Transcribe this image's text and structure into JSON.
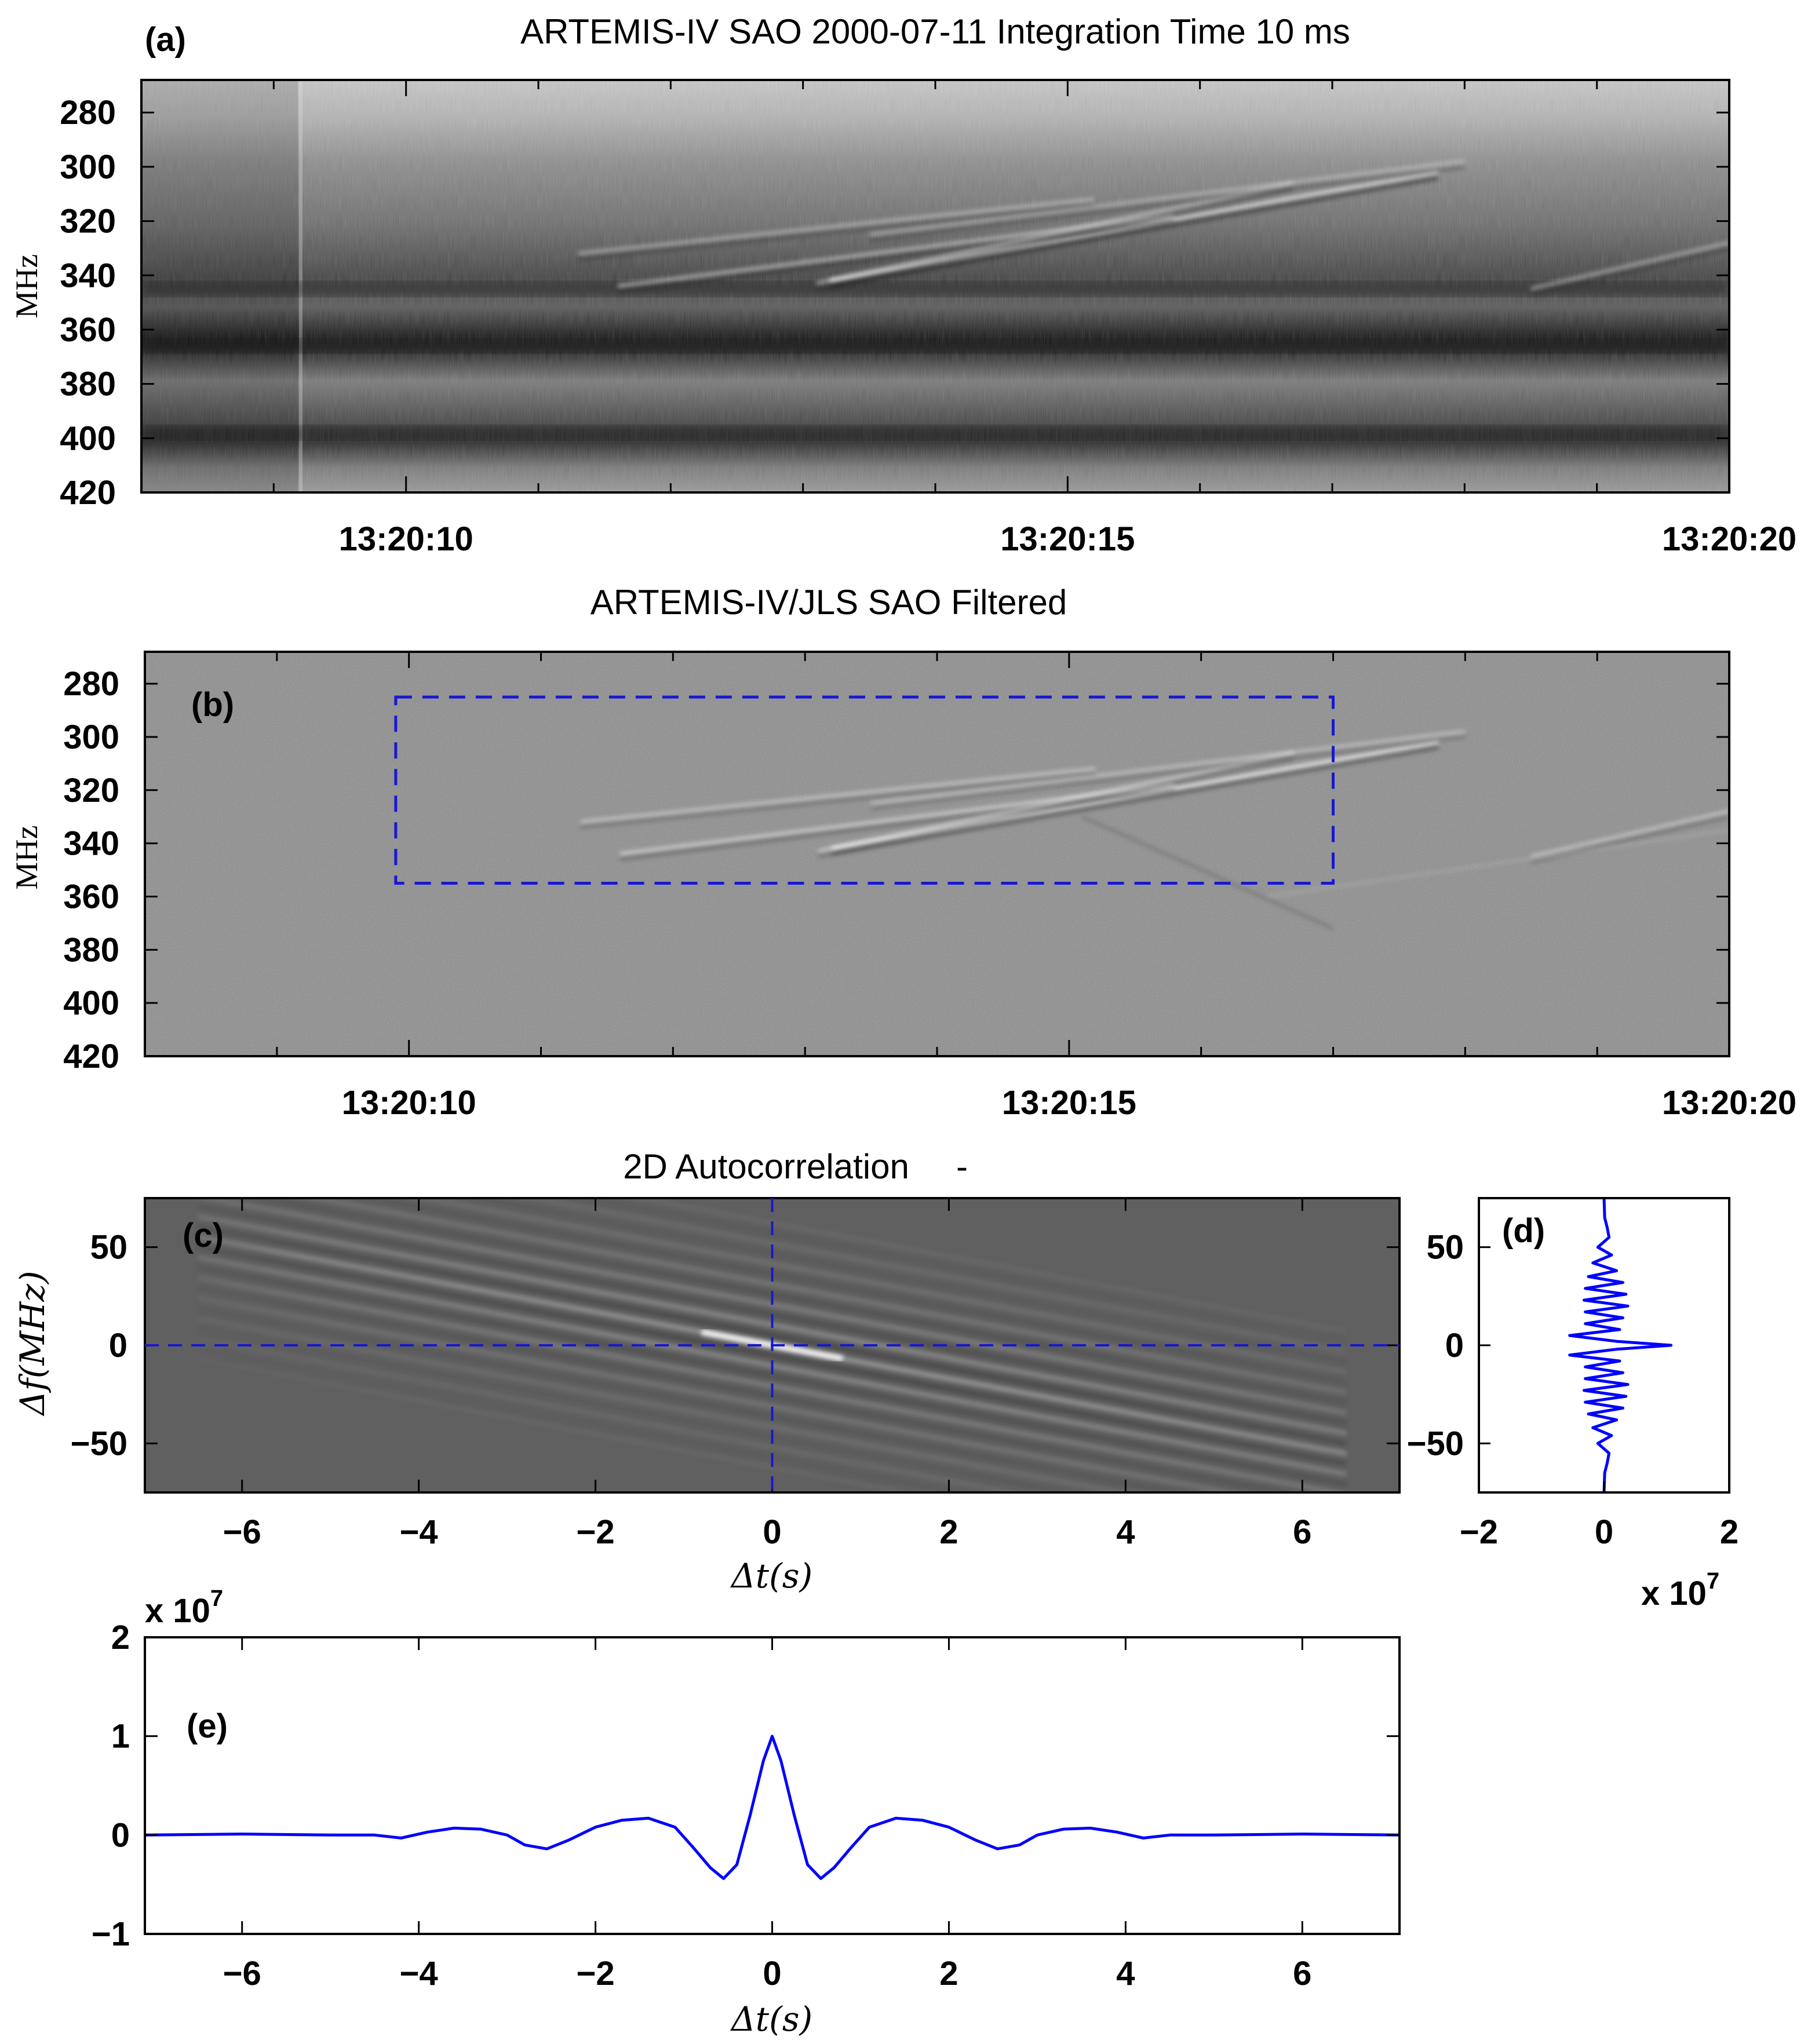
{
  "figure": {
    "panels": {
      "a": {
        "tag": "(a)",
        "title": "ARTEMIS-IV SAO 2000-07-11 Integration Time 10 ms",
        "ylabel": "MHz"
      },
      "b": {
        "tag": "(b)",
        "title": "ARTEMIS-IV/JLS SAO Filtered",
        "ylabel": "MHz"
      },
      "c": {
        "tag": "(c)",
        "title": "2D Autocorrelation",
        "title_suffix": "-",
        "ylabel": "Δf(MHz)",
        "xlabel": "Δt(s)"
      },
      "d": {
        "tag": "(d)",
        "x_multiplier": "x 10",
        "x_multiplier_exp": "7"
      },
      "e": {
        "tag": "(e)",
        "xlabel": "Δt(s)",
        "y_multiplier": "x 10",
        "y_multiplier_exp": "7"
      }
    }
  },
  "chart_data": [
    {
      "panel": "a",
      "type": "heatmap",
      "title": "ARTEMIS-IV SAO 2000-07-11 Integration Time 10 ms",
      "ylabel": "MHz",
      "xlim": [
        "13:20:08",
        "13:20:20"
      ],
      "ylim": [
        420,
        268
      ],
      "x_ticks": [
        "13:20:10",
        "13:20:15",
        "13:20:20"
      ],
      "y_ticks": [
        280,
        300,
        320,
        340,
        360,
        380,
        400,
        420
      ],
      "dark_bands_MHz": [
        345,
        366,
        398
      ],
      "fiber_bursts": [
        {
          "t0": 13.2,
          "t1": 17.8,
          "f0": 342,
          "f1": 302,
          "intensity": 0.9
        },
        {
          "t0": 11.6,
          "t1": 15.8,
          "f0": 344,
          "f1": 318,
          "intensity": 0.6
        },
        {
          "t0": 11.3,
          "t1": 15.2,
          "f0": 332,
          "f1": 312,
          "intensity": 0.5
        },
        {
          "t0": 13.1,
          "t1": 16.7,
          "f0": 343,
          "f1": 306,
          "intensity": 0.55
        },
        {
          "t0": 13.5,
          "t1": 18.0,
          "f0": 325,
          "f1": 298,
          "intensity": 0.45
        },
        {
          "t0": 18.5,
          "t1": 20.0,
          "f0": 345,
          "f1": 328,
          "intensity": 0.5
        }
      ]
    },
    {
      "panel": "b",
      "type": "heatmap",
      "title": "ARTEMIS-IV/JLS SAO Filtered",
      "ylabel": "MHz",
      "xlim": [
        "13:20:08",
        "13:20:20"
      ],
      "ylim": [
        420,
        268
      ],
      "x_ticks": [
        "13:20:10",
        "13:20:15",
        "13:20:20"
      ],
      "y_ticks": [
        280,
        300,
        320,
        340,
        360,
        380,
        400,
        420
      ],
      "selection_box": {
        "t0": 9.9,
        "t1": 17.0,
        "f0": 285,
        "f1": 355
      }
    },
    {
      "panel": "c",
      "type": "heatmap",
      "title": "2D Autocorrelation",
      "xlabel": "Δt(s)",
      "ylabel": "Δf(MHz)",
      "xlim": [
        -7.1,
        7.1
      ],
      "ylim": [
        -75,
        75
      ],
      "x_ticks": [
        -6,
        -4,
        -2,
        0,
        2,
        4,
        6
      ],
      "y_ticks": [
        -50,
        0,
        50
      ],
      "fringe_slope_MHz_per_s": -8.5
    },
    {
      "panel": "d",
      "type": "line",
      "xlim": [
        -2,
        2
      ],
      "ylim": [
        -75,
        75
      ],
      "x_ticks": [
        -2,
        0,
        2
      ],
      "y_ticks": [
        -50,
        0,
        50
      ],
      "x_multiplier": 10000000,
      "series": [
        {
          "color": "#0000ff",
          "y": [
            -75,
            -65,
            -60,
            -55,
            -50,
            -46,
            -42,
            -38,
            -35,
            -32,
            -29,
            -26,
            -23,
            -20,
            -17,
            -14,
            -11,
            -8,
            -5,
            -2,
            0,
            2,
            5,
            8,
            11,
            14,
            17,
            20,
            23,
            26,
            29,
            32,
            35,
            38,
            42,
            46,
            50,
            55,
            60,
            65,
            75
          ],
          "x": [
            0,
            0.01,
            0.05,
            0.08,
            -0.1,
            0.12,
            -0.18,
            0.2,
            -0.25,
            0.3,
            -0.3,
            0.35,
            -0.32,
            0.38,
            -0.3,
            0.3,
            -0.3,
            0.25,
            -0.55,
            0.2,
            1.07,
            0.2,
            -0.55,
            0.25,
            -0.3,
            0.3,
            -0.3,
            0.38,
            -0.32,
            0.35,
            -0.3,
            0.3,
            -0.25,
            0.2,
            -0.18,
            0.12,
            -0.1,
            0.08,
            0.05,
            0.01,
            0
          ]
        }
      ]
    },
    {
      "panel": "e",
      "type": "line",
      "xlabel": "Δt(s)",
      "xlim": [
        -7.1,
        7.1
      ],
      "ylim": [
        -1,
        2
      ],
      "x_ticks": [
        -6,
        -4,
        -2,
        0,
        2,
        4,
        6
      ],
      "y_ticks": [
        -1,
        0,
        1,
        2
      ],
      "y_multiplier": 10000000,
      "series": [
        {
          "color": "#0000ff",
          "x": [
            -7.1,
            -6.0,
            -5.0,
            -4.5,
            -4.2,
            -3.9,
            -3.6,
            -3.3,
            -3.0,
            -2.8,
            -2.55,
            -2.3,
            -2.0,
            -1.7,
            -1.4,
            -1.1,
            -0.9,
            -0.7,
            -0.55,
            -0.4,
            -0.25,
            -0.1,
            0.0,
            0.1,
            0.25,
            0.4,
            0.55,
            0.7,
            0.9,
            1.1,
            1.4,
            1.7,
            2.0,
            2.3,
            2.55,
            2.8,
            3.0,
            3.3,
            3.6,
            3.9,
            4.2,
            4.5,
            5.0,
            6.0,
            7.1
          ],
          "y": [
            0.0,
            0.01,
            0.0,
            0.0,
            -0.03,
            0.03,
            0.07,
            0.06,
            0.0,
            -0.1,
            -0.14,
            -0.05,
            0.08,
            0.15,
            0.17,
            0.08,
            -0.12,
            -0.33,
            -0.44,
            -0.3,
            0.2,
            0.75,
            1.0,
            0.75,
            0.2,
            -0.3,
            -0.44,
            -0.33,
            -0.12,
            0.08,
            0.17,
            0.15,
            0.08,
            -0.05,
            -0.14,
            -0.1,
            0.0,
            0.06,
            0.07,
            0.03,
            -0.03,
            0.0,
            0.0,
            0.01,
            0.0
          ]
        }
      ]
    }
  ]
}
